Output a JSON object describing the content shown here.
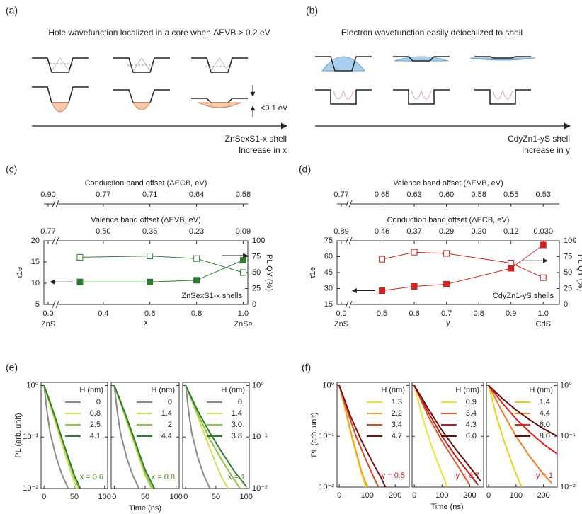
{
  "panels": {
    "a": {
      "label": "(a)",
      "title": "Hole wavefunction localized in a core when ΔEVB > 0.2 eV",
      "energy_note": "<0.1 eV",
      "shell": "ZnSexS1-x shell",
      "direction": "Increase in x"
    },
    "b": {
      "label": "(b)",
      "title": "Electron wavefunction easily delocalized to shell",
      "shell": "CdyZn1-yS shell",
      "direction": "Increase in y"
    }
  },
  "chart_data": [
    {
      "type": "line",
      "panel": "(c)",
      "xlabel": "x",
      "xlim": [
        0,
        1.02
      ],
      "xbreak": 0.2,
      "xticks": [
        {
          "value": 0,
          "label": "0.0"
        },
        0.4,
        0.6,
        0.8,
        {
          "value": 1,
          "label": "1.0"
        }
      ],
      "x_end_labels": [
        "ZnS",
        "ZnSe"
      ],
      "top_axes": [
        {
          "title": "Conduction band offset (ΔECB, eV)",
          "labels": [
            "0.90",
            "0.77",
            "0.71",
            "0.64",
            "0.58"
          ]
        },
        {
          "title": "Valence band offset (ΔEVB, eV)",
          "labels": [
            "0.77",
            "0.50",
            "0.36",
            "0.23",
            "0.09"
          ]
        }
      ],
      "ylabel": "τ1e",
      "ylim": [
        5,
        20
      ],
      "yticks": [
        5,
        10,
        15,
        20
      ],
      "y2label": "PL QY (%)",
      "y2lim": [
        0,
        100
      ],
      "y2ticks": [
        0,
        25,
        50,
        75,
        100
      ],
      "annotation": "ZnSexS1-x shells",
      "series": [
        {
          "color": "#2e7d32",
          "marker": "filled",
          "x": [
            0.3,
            0.6,
            0.8,
            1
          ],
          "values": [
            10.3,
            10.3,
            10.7,
            15.4
          ]
        },
        {
          "color": "#2e7d32",
          "marker": "open",
          "axis": "y2",
          "x": [
            0.3,
            0.6,
            0.8,
            1
          ],
          "values": [
            74,
            76,
            72,
            50
          ]
        }
      ]
    },
    {
      "type": "line",
      "panel": "(d)",
      "xlabel": "y",
      "xlim": [
        0,
        1.05
      ],
      "xbreak": 0.4,
      "xticks": [
        {
          "value": 0,
          "label": "0.0"
        },
        0.5,
        0.6,
        0.7,
        0.8,
        0.9,
        {
          "value": 1,
          "label": "1.0"
        }
      ],
      "x_end_labels": [
        "ZnS",
        "CdS"
      ],
      "top_axes": [
        {
          "title": "Valence band offset (ΔEVB, eV)",
          "labels": [
            "0.77",
            "0.65",
            "0.63",
            "0.60",
            "0.58",
            "0.55",
            "0.53"
          ]
        },
        {
          "title": "Conduction band offset (ΔECB, eV)",
          "labels": [
            "0.89",
            "0.46",
            "0.37",
            "0.29",
            "0.20",
            "0.12",
            "0.030"
          ]
        }
      ],
      "ylabel": "τ1e",
      "ylim": [
        15,
        75
      ],
      "yticks": [
        15,
        30,
        45,
        60,
        75
      ],
      "y2label": "PL QY (%)",
      "y2lim": [
        0,
        100
      ],
      "y2ticks": [
        0,
        25,
        50,
        75,
        100
      ],
      "annotation": "CdyZn1-yS shells",
      "series": [
        {
          "color": "#d42020",
          "marker": "filled",
          "x": [
            0.5,
            0.6,
            0.7,
            0.9,
            1
          ],
          "values": [
            28,
            32,
            34,
            49,
            71
          ]
        },
        {
          "color": "#d42020",
          "marker": "open",
          "axis": "y2",
          "x": [
            0.5,
            0.6,
            0.7,
            0.9,
            1
          ],
          "values": [
            71,
            82,
            80,
            65,
            42
          ]
        }
      ]
    },
    {
      "type": "line",
      "panel": "(e)",
      "xlabel": "Time (ns)",
      "ylabel": "PL (arb. unit)",
      "log_y": true,
      "ylim": [
        0.01,
        1.15
      ],
      "yticks": [
        {
          "value": 1,
          "label": "10⁰"
        },
        {
          "value": 0.1,
          "label": "10⁻¹"
        },
        {
          "value": 0.01,
          "label": "10⁻²"
        }
      ],
      "xlim": [
        -5,
        105
      ],
      "xticks": [
        0,
        50,
        100
      ],
      "subplots": [
        {
          "legend_title": "H (nm)",
          "annotation": "x = 0.6",
          "annotation_color": "#4a8a1a",
          "series": [
            {
              "name": "0",
              "color": "#8a8a8a",
              "x": [
                0,
                5,
                10,
                20,
                30,
                40
              ],
              "values": [
                1,
                0.3,
                0.12,
                0.04,
                0.018,
                0.01
              ]
            },
            {
              "name": "0.8",
              "color": "#d4dc5a",
              "x": [
                0,
                10,
                20,
                30,
                40,
                50,
                55
              ],
              "values": [
                1,
                0.4,
                0.17,
                0.07,
                0.03,
                0.013,
                0.01
              ]
            },
            {
              "name": "2.5",
              "color": "#8cc63f",
              "x": [
                0,
                10,
                20,
                30,
                40,
                50,
                58
              ],
              "values": [
                1,
                0.45,
                0.2,
                0.085,
                0.037,
                0.016,
                0.01
              ]
            },
            {
              "name": "4.1",
              "color": "#2f7d2f",
              "x": [
                0,
                10,
                20,
                30,
                40,
                50,
                60
              ],
              "values": [
                1,
                0.47,
                0.21,
                0.09,
                0.04,
                0.018,
                0.01
              ]
            }
          ]
        },
        {
          "legend_title": "H (nm)",
          "annotation": "x = 0.8",
          "annotation_color": "#4a8a1a",
          "series": [
            {
              "name": "0",
              "color": "#8a8a8a",
              "x": [
                0,
                5,
                10,
                20,
                30,
                40
              ],
              "values": [
                1,
                0.3,
                0.12,
                0.04,
                0.018,
                0.01
              ]
            },
            {
              "name": "1.4",
              "color": "#d4dc5a",
              "x": [
                0,
                10,
                20,
                30,
                40,
                50,
                60
              ],
              "values": [
                1,
                0.45,
                0.2,
                0.09,
                0.04,
                0.018,
                0.01
              ]
            },
            {
              "name": "2",
              "color": "#8cc63f",
              "x": [
                0,
                10,
                20,
                30,
                40,
                50,
                62
              ],
              "values": [
                1,
                0.48,
                0.22,
                0.1,
                0.045,
                0.02,
                0.01
              ]
            },
            {
              "name": "4.4",
              "color": "#2f7d2f",
              "x": [
                0,
                10,
                20,
                30,
                40,
                50,
                65
              ],
              "values": [
                1,
                0.5,
                0.24,
                0.11,
                0.05,
                0.023,
                0.01
              ]
            }
          ]
        },
        {
          "legend_title": "H (nm)",
          "annotation": "x = 1",
          "annotation_color": "#4a8a1a",
          "series": [
            {
              "name": "0",
              "color": "#8a8a8a",
              "x": [
                0,
                5,
                10,
                20,
                30,
                40
              ],
              "values": [
                1,
                0.3,
                0.12,
                0.04,
                0.018,
                0.01
              ]
            },
            {
              "name": "1.4",
              "color": "#d4dc5a",
              "x": [
                0,
                10,
                20,
                30,
                40,
                50,
                60,
                70
              ],
              "values": [
                1,
                0.5,
                0.25,
                0.12,
                0.06,
                0.03,
                0.016,
                0.01
              ]
            },
            {
              "name": "3.0",
              "color": "#8cc63f",
              "x": [
                0,
                20,
                40,
                60,
                80,
                90
              ],
              "values": [
                1,
                0.28,
                0.09,
                0.035,
                0.015,
                0.01
              ]
            },
            {
              "name": "3.8",
              "color": "#2f7d2f",
              "x": [
                0,
                20,
                40,
                60,
                80,
                100
              ],
              "values": [
                1,
                0.32,
                0.12,
                0.05,
                0.022,
                0.011
              ]
            }
          ]
        }
      ]
    },
    {
      "type": "line",
      "panel": "(f)",
      "xlabel": "Time (ns)",
      "ylabel": "PL (arb. unit)",
      "log_y": true,
      "ylim": [
        0.01,
        1.15
      ],
      "yticks": [
        {
          "value": 1,
          "label": "10⁰"
        },
        {
          "value": 0.1,
          "label": "10⁻¹"
        },
        {
          "value": 0.01,
          "label": "10⁻²"
        }
      ],
      "xlim": [
        -8,
        250
      ],
      "xticks": [
        0,
        100,
        200
      ],
      "subplots": [
        {
          "legend_title": "H (nm)",
          "annotation": "y = 0.5",
          "annotation_color": "#d02020",
          "series": [
            {
              "name": "1.3",
              "color": "#f2e030",
              "x": [
                0,
                20,
                40,
                60,
                80,
                95
              ],
              "values": [
                1,
                0.35,
                0.12,
                0.045,
                0.018,
                0.01
              ]
            },
            {
              "name": "2.2",
              "color": "#f0a030",
              "x": [
                0,
                20,
                40,
                60,
                80,
                100
              ],
              "values": [
                1,
                0.37,
                0.13,
                0.05,
                0.02,
                0.01
              ]
            },
            {
              "name": "3.4",
              "color": "#d84a20",
              "x": [
                0,
                30,
                60,
                90,
                120,
                140
              ],
              "values": [
                1,
                0.3,
                0.1,
                0.04,
                0.017,
                0.01
              ]
            },
            {
              "name": "4.7",
              "color": "#7a1414",
              "x": [
                0,
                40,
                80,
                120,
                150,
                165
              ],
              "values": [
                1,
                0.25,
                0.08,
                0.03,
                0.015,
                0.01
              ]
            }
          ]
        },
        {
          "legend_title": "H (nm)",
          "annotation": "y = 0.7",
          "annotation_color": "#d02020",
          "series": [
            {
              "name": "0.9",
              "color": "#f2e030",
              "x": [
                0,
                30,
                60,
                90,
                120
              ],
              "values": [
                1,
                0.23,
                0.07,
                0.025,
                0.01
              ]
            },
            {
              "name": "3.4",
              "color": "#e05a30",
              "x": [
                0,
                50,
                100,
                150,
                200
              ],
              "values": [
                1,
                0.25,
                0.08,
                0.03,
                0.011
              ]
            },
            {
              "name": "4.3",
              "color": "#b82020",
              "x": [
                0,
                50,
                100,
                150,
                200,
                230
              ],
              "values": [
                1,
                0.3,
                0.1,
                0.04,
                0.018,
                0.011
              ]
            },
            {
              "name": "6.0",
              "color": "#6a0c0c",
              "x": [
                0,
                50,
                100,
                150,
                200,
                240
              ],
              "values": [
                1,
                0.35,
                0.13,
                0.055,
                0.025,
                0.013
              ]
            }
          ]
        },
        {
          "legend_title": "H (nm)",
          "annotation": "y = 1",
          "annotation_color": "#d02020",
          "series": [
            {
              "name": "1.4",
              "color": "#e8d020",
              "x": [
                0,
                30,
                60,
                90,
                120
              ],
              "values": [
                1,
                0.23,
                0.07,
                0.025,
                0.01
              ]
            },
            {
              "name": "4.4",
              "color": "#f08020",
              "x": [
                0,
                50,
                100,
                150,
                200,
                230
              ],
              "values": [
                1,
                0.3,
                0.1,
                0.04,
                0.018,
                0.012
              ]
            },
            {
              "name": "6.0",
              "color": "#e02020",
              "x": [
                0,
                50,
                100,
                150,
                200,
                250
              ],
              "values": [
                1,
                0.45,
                0.22,
                0.12,
                0.07,
                0.045
              ]
            },
            {
              "name": "8.0",
              "color": "#6a0a0a",
              "x": [
                0,
                50,
                100,
                150,
                200,
                250
              ],
              "values": [
                1,
                0.55,
                0.33,
                0.21,
                0.14,
                0.1
              ]
            }
          ]
        }
      ]
    }
  ]
}
